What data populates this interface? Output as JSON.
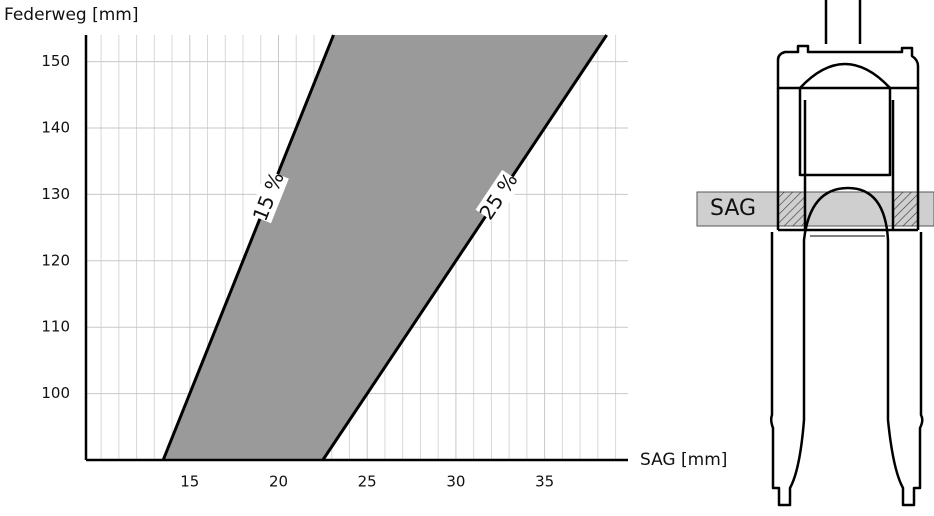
{
  "chart_data": {
    "type": "band",
    "y_label": "Federweg [mm]",
    "x_label": "SAG [mm]",
    "xlim": [
      9.15,
      39.7
    ],
    "ylim": [
      90,
      154
    ],
    "xticks": [
      15,
      20,
      25,
      30,
      35
    ],
    "yticks": [
      100,
      110,
      120,
      130,
      140,
      150
    ],
    "xminorticks": [
      10,
      11,
      12,
      13,
      14,
      16,
      17,
      18,
      19,
      21,
      22,
      23,
      24,
      26,
      27,
      28,
      29,
      31,
      32,
      33,
      34,
      36,
      37,
      38,
      39
    ],
    "grid": true,
    "fill_color": "#9a9a9a",
    "series": [
      {
        "name": "15 %",
        "color": "#000000",
        "x": [
          13.5,
          23.1
        ],
        "values": [
          90,
          154
        ]
      },
      {
        "name": "25 %",
        "color": "#000000",
        "x": [
          22.5,
          38.5
        ],
        "values": [
          90,
          154
        ]
      }
    ]
  },
  "diagram": {
    "label": "SAG"
  }
}
